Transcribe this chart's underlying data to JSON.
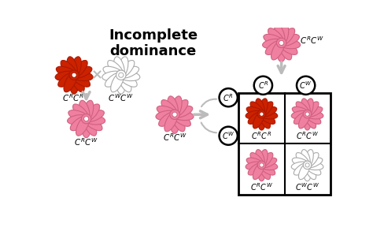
{
  "title": "Incomplete\ndominance",
  "title_fontsize": 13,
  "title_fontweight": "bold",
  "bg_color": "#ffffff",
  "red_color": "#cc2200",
  "red_dark": "#aa1800",
  "pink_color": "#f080a0",
  "pink_dark": "#d06080",
  "white_outline": "#aaaaaa",
  "arrow_color": "#bbbbbb",
  "circle_lw": 1.8,
  "sq_lw": 2.0
}
